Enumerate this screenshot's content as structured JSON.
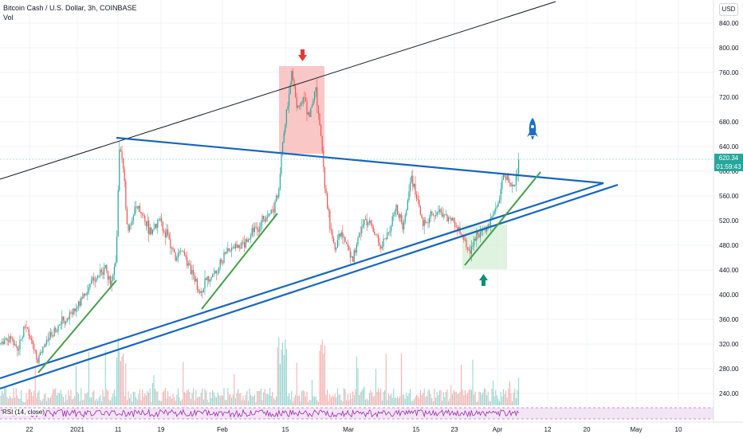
{
  "header": {
    "symbol_line": "Bitcoin Cash / U.S. Dollar, 3h, COINBASE",
    "volume_label": "Vol",
    "currency_button": "USD"
  },
  "rsi": {
    "label": "RSI (14, close)"
  },
  "price_tag": {
    "price": "620.34",
    "countdown": "01:59:43"
  },
  "colors": {
    "bull": "#26a69a",
    "bear": "#ef5350",
    "trendline": "#1565c0",
    "support_line": "#43a047",
    "rsi_line": "#9c27b0",
    "sell_zone": "#f8b4b4",
    "buy_zone": "#d8efd8",
    "rocket": "#1f6fbf"
  },
  "chart_data": {
    "type": "candlestick",
    "y_axis": {
      "ticks": [
        "840.00",
        "800.00",
        "760.00",
        "720.00",
        "680.00",
        "640.00",
        "600.00",
        "560.00",
        "520.00",
        "480.00",
        "440.00",
        "400.00",
        "360.00",
        "320.00",
        "280.00",
        "240.00"
      ]
    },
    "x_axis": {
      "ticks": [
        "22",
        "2021",
        "11",
        "19",
        "Feb",
        "15",
        "Mar",
        "15",
        "23",
        "Apr",
        "12",
        "20",
        "May",
        "10"
      ]
    },
    "current_price": 620.34,
    "annotations": {
      "sell_arrow": "red down arrow above Feb peak",
      "buy_arrow": "green up arrow below late-March zone",
      "rocket": "rocket icon above breakout"
    }
  }
}
